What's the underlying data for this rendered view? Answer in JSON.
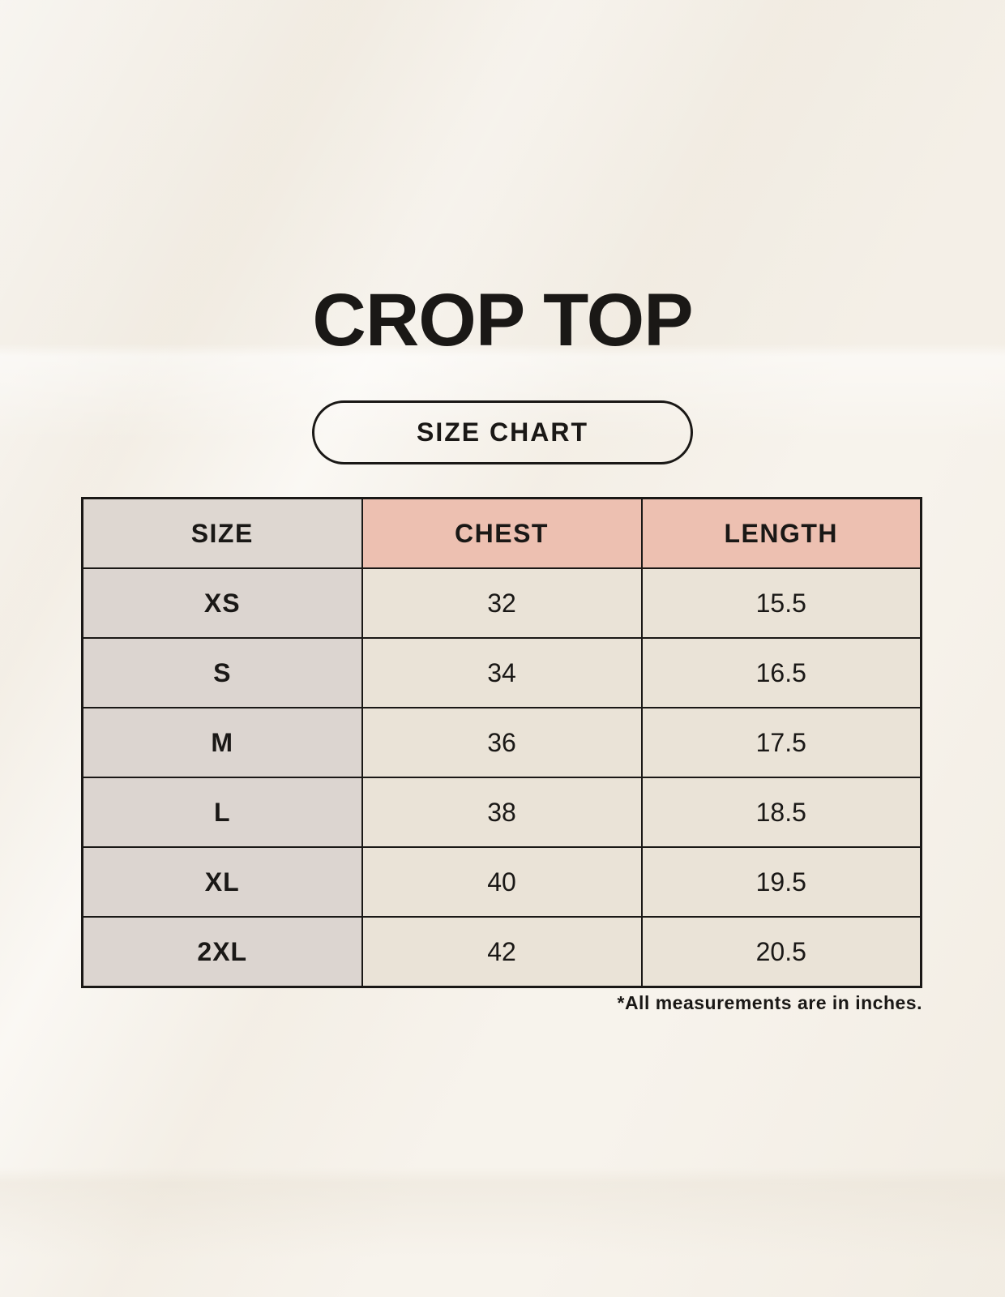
{
  "page": {
    "title": "CROP TOP",
    "size_chart_badge": "SIZE CHART",
    "footnote": "*All measurements are in inches."
  },
  "colors": {
    "page_bg": "#f7f3ec",
    "accent_pink": "#edc0b1",
    "header_gray": "#ded7d1",
    "label_gray": "#dcd5d0",
    "cell_cream": "#eae3d7",
    "ink": "#1a1816"
  },
  "chart_data": {
    "type": "table",
    "title": "CROP TOP",
    "subtitle": "SIZE CHART",
    "columns": [
      "SIZE",
      "CHEST",
      "LENGTH"
    ],
    "rows": [
      [
        "XS",
        "32",
        "15.5"
      ],
      [
        "S",
        "34",
        "16.5"
      ],
      [
        "M",
        "36",
        "17.5"
      ],
      [
        "L",
        "38",
        "18.5"
      ],
      [
        "XL",
        "40",
        "19.5"
      ],
      [
        "2XL",
        "42",
        "20.5"
      ]
    ],
    "note": "*All measurements are in inches.",
    "units": "inches",
    "layout": {
      "header_row": true,
      "label_column": true,
      "grid": "on"
    }
  }
}
